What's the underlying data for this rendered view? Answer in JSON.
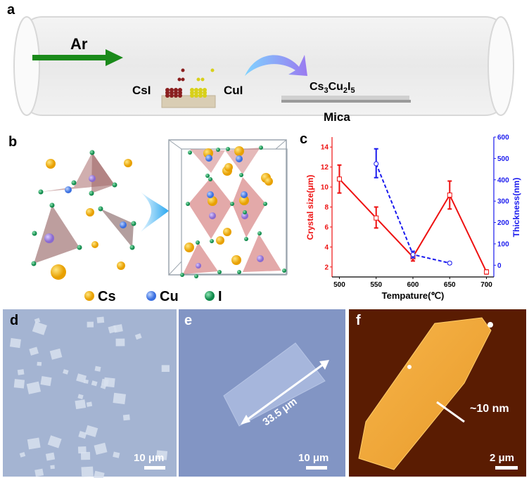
{
  "panels": {
    "a": {
      "label": "a",
      "gas": "Ar",
      "precursor_left": "CsI",
      "precursor_right": "CuI",
      "product": {
        "base": "Cs",
        "s1": "3",
        "mid": "Cu",
        "s2": "2",
        "end": "I",
        "s3": "5"
      },
      "substrate": "Mica"
    },
    "b": {
      "label": "b",
      "legend": [
        {
          "name": "Cs",
          "color": "#f5b400"
        },
        {
          "name": "Cu",
          "color": "#5b8ff0"
        },
        {
          "name": "I",
          "color": "#22a060"
        }
      ]
    },
    "c": {
      "label": "c"
    },
    "d": {
      "label": "d",
      "scale_bar": "10 μm"
    },
    "e": {
      "label": "e",
      "scale_bar": "10 μm",
      "measurement": "33.5 μm"
    },
    "f": {
      "label": "f",
      "scale_bar": "2 μm",
      "height_annotation": "~10 nm"
    }
  },
  "chart_data": {
    "type": "line",
    "xlabel": "Tempature(℃)",
    "ylabel_left": "Crystal size(μm)",
    "ylabel_right": "Thickness(nm)",
    "xlim": [
      490,
      710
    ],
    "ylim_left": [
      1,
      15
    ],
    "ylim_right": [
      -55,
      600
    ],
    "x_ticks": [
      500,
      550,
      600,
      650,
      700
    ],
    "y_ticks_left": [
      2,
      4,
      6,
      8,
      10,
      12,
      14
    ],
    "y_ticks_right": [
      0,
      100,
      200,
      300,
      400,
      500,
      600
    ],
    "grid": false,
    "series": [
      {
        "axis": "left",
        "color": "#ee1111",
        "style": "solid",
        "marker": "square",
        "x": [
          500,
          550,
          600,
          650,
          700
        ],
        "y": [
          10.8,
          6.9,
          3.0,
          9.2,
          1.5
        ],
        "err_low": [
          9.4,
          5.9,
          2.6,
          7.8,
          1.3
        ],
        "err_high": [
          12.2,
          8.0,
          3.3,
          10.6,
          1.7
        ]
      },
      {
        "axis": "right",
        "color": "#1a1aee",
        "style": "dashed",
        "marker": "circle",
        "x": [
          550,
          600,
          650
        ],
        "y": [
          475,
          50,
          10
        ],
        "err_low": [
          410,
          35,
          5
        ],
        "err_high": [
          545,
          65,
          15
        ]
      }
    ]
  }
}
